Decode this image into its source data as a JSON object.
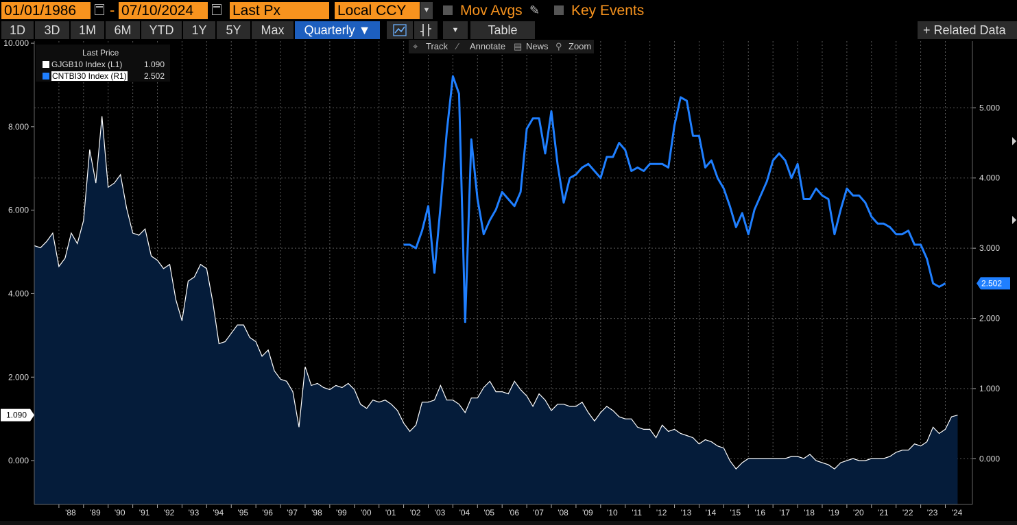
{
  "toolbar": {
    "start_date": "01/01/1986",
    "end_date": "07/10/2024",
    "date_separator": "-",
    "field": "Last Px",
    "currency": "Local CCY",
    "mov_avgs": "Mov Avgs",
    "key_events": "Key Events",
    "ranges": [
      "1D",
      "3D",
      "1M",
      "6M",
      "YTD",
      "1Y",
      "5Y",
      "Max"
    ],
    "frequency": "Quarterly ▼",
    "table": "Table",
    "related": "+ Related Data",
    "dropdown_arrow": "▼",
    "sub_tools": [
      "Track",
      "Annotate",
      "News",
      "Zoom"
    ],
    "sub_tool_icons": [
      "crosshair-icon",
      "pencil-icon",
      "news-icon",
      "magnifier-icon"
    ]
  },
  "colors": {
    "accent": "#f7931e",
    "active": "#1d5fbf",
    "series_left": "#ffffff",
    "series_right": "#1f7fff",
    "area_fill": "#051c3a",
    "grid": "#5a5a5a"
  },
  "legend": {
    "title": "Last Price",
    "entries": [
      {
        "label": "GJGB10 Index  (L1)",
        "value": "1.090"
      },
      {
        "label": "CNTBI30 Index  (R1)",
        "value": "2.502"
      }
    ]
  },
  "chart_data": {
    "type": "line",
    "left_axis": {
      "ticks": [
        "0.000",
        "2.000",
        "4.000",
        "6.000",
        "8.000",
        "10.000"
      ],
      "tick_values": [
        0,
        2,
        4,
        6,
        8,
        10
      ],
      "range": [
        -1.05,
        10.05
      ],
      "last_marker": "1.090"
    },
    "right_axis": {
      "ticks": [
        "0.000",
        "1.000",
        "2.000",
        "3.000",
        "4.000",
        "5.000"
      ],
      "tick_values": [
        0,
        1,
        2,
        3,
        4,
        5
      ],
      "range": [
        -0.65,
        5.95
      ],
      "last_marker": "2.502"
    },
    "x_ticks": [
      "'88",
      "'89",
      "'90",
      "'91",
      "'92",
      "'93",
      "'94",
      "'95",
      "'96",
      "'97",
      "'98",
      "'99",
      "'00",
      "'01",
      "'02",
      "'03",
      "'04",
      "'05",
      "'06",
      "'07",
      "'08",
      "'09",
      "'10",
      "'11",
      "'12",
      "'13",
      "'14",
      "'15",
      "'16",
      "'17",
      "'18",
      "'19",
      "'20",
      "'21",
      "'22",
      "'23",
      "'24"
    ],
    "x_tick_years": [
      1988,
      1989,
      1990,
      1991,
      1992,
      1993,
      1994,
      1995,
      1996,
      1997,
      1998,
      1999,
      2000,
      2001,
      2002,
      2003,
      2004,
      2005,
      2006,
      2007,
      2008,
      2009,
      2010,
      2011,
      2012,
      2013,
      2014,
      2015,
      2016,
      2017,
      2018,
      2019,
      2020,
      2021,
      2022,
      2023,
      2024
    ],
    "x_range": [
      1987.0,
      2025.1
    ],
    "series": [
      {
        "name": "GJGB10 Index (L1)",
        "axis": "left",
        "style": "area",
        "points": [
          [
            1987.0,
            5.15
          ],
          [
            1987.25,
            5.1
          ],
          [
            1987.5,
            5.25
          ],
          [
            1987.75,
            5.45
          ],
          [
            1988.0,
            4.65
          ],
          [
            1988.25,
            4.85
          ],
          [
            1988.5,
            5.45
          ],
          [
            1988.75,
            5.2
          ],
          [
            1989.0,
            5.75
          ],
          [
            1989.25,
            7.45
          ],
          [
            1989.5,
            6.65
          ],
          [
            1989.75,
            8.25
          ],
          [
            1990.0,
            6.55
          ],
          [
            1990.25,
            6.65
          ],
          [
            1990.5,
            6.85
          ],
          [
            1990.75,
            6.05
          ],
          [
            1991.0,
            5.45
          ],
          [
            1991.25,
            5.4
          ],
          [
            1991.5,
            5.55
          ],
          [
            1991.75,
            4.9
          ],
          [
            1992.0,
            4.8
          ],
          [
            1992.25,
            4.6
          ],
          [
            1992.5,
            4.7
          ],
          [
            1992.75,
            3.85
          ],
          [
            1993.0,
            3.35
          ],
          [
            1993.25,
            4.3
          ],
          [
            1993.5,
            4.4
          ],
          [
            1993.75,
            4.7
          ],
          [
            1994.0,
            4.6
          ],
          [
            1994.25,
            3.8
          ],
          [
            1994.5,
            2.8
          ],
          [
            1994.75,
            2.85
          ],
          [
            1995.0,
            3.05
          ],
          [
            1995.25,
            3.25
          ],
          [
            1995.5,
            3.25
          ],
          [
            1995.75,
            2.95
          ],
          [
            1996.0,
            2.85
          ],
          [
            1996.25,
            2.5
          ],
          [
            1996.5,
            2.65
          ],
          [
            1996.75,
            2.15
          ],
          [
            1997.0,
            1.95
          ],
          [
            1997.25,
            1.9
          ],
          [
            1997.5,
            1.65
          ],
          [
            1997.75,
            0.8
          ],
          [
            1998.0,
            2.25
          ],
          [
            1998.25,
            1.8
          ],
          [
            1998.5,
            1.85
          ],
          [
            1998.75,
            1.75
          ],
          [
            1999.0,
            1.7
          ],
          [
            1999.25,
            1.8
          ],
          [
            1999.5,
            1.75
          ],
          [
            1999.75,
            1.85
          ],
          [
            2000.0,
            1.7
          ],
          [
            2000.25,
            1.35
          ],
          [
            2000.5,
            1.25
          ],
          [
            2000.75,
            1.45
          ],
          [
            2001.0,
            1.4
          ],
          [
            2001.25,
            1.45
          ],
          [
            2001.5,
            1.35
          ],
          [
            2001.75,
            1.2
          ],
          [
            2002.0,
            0.9
          ],
          [
            2002.25,
            0.7
          ],
          [
            2002.5,
            0.85
          ],
          [
            2002.75,
            1.4
          ],
          [
            2003.0,
            1.4
          ],
          [
            2003.25,
            1.45
          ],
          [
            2003.5,
            1.8
          ],
          [
            2003.75,
            1.45
          ],
          [
            2004.0,
            1.45
          ],
          [
            2004.25,
            1.35
          ],
          [
            2004.5,
            1.15
          ],
          [
            2004.75,
            1.5
          ],
          [
            2005.0,
            1.5
          ],
          [
            2005.25,
            1.75
          ],
          [
            2005.5,
            1.9
          ],
          [
            2005.75,
            1.65
          ],
          [
            2006.0,
            1.65
          ],
          [
            2006.25,
            1.6
          ],
          [
            2006.5,
            1.9
          ],
          [
            2006.75,
            1.7
          ],
          [
            2007.0,
            1.55
          ],
          [
            2007.25,
            1.3
          ],
          [
            2007.5,
            1.6
          ],
          [
            2007.75,
            1.45
          ],
          [
            2008.0,
            1.2
          ],
          [
            2008.25,
            1.35
          ],
          [
            2008.5,
            1.35
          ],
          [
            2008.75,
            1.3
          ],
          [
            2009.0,
            1.3
          ],
          [
            2009.25,
            1.4
          ],
          [
            2009.5,
            1.15
          ],
          [
            2009.75,
            0.95
          ],
          [
            2010.0,
            1.15
          ],
          [
            2010.25,
            1.3
          ],
          [
            2010.5,
            1.2
          ],
          [
            2010.75,
            1.05
          ],
          [
            2011.0,
            1.0
          ],
          [
            2011.25,
            1.0
          ],
          [
            2011.5,
            0.8
          ],
          [
            2011.75,
            0.75
          ],
          [
            2012.0,
            0.75
          ],
          [
            2012.25,
            0.55
          ],
          [
            2012.5,
            0.85
          ],
          [
            2012.75,
            0.7
          ],
          [
            2013.0,
            0.75
          ],
          [
            2013.25,
            0.65
          ],
          [
            2013.5,
            0.6
          ],
          [
            2013.75,
            0.55
          ],
          [
            2014.0,
            0.4
          ],
          [
            2014.25,
            0.5
          ],
          [
            2014.5,
            0.45
          ],
          [
            2014.75,
            0.35
          ],
          [
            2015.0,
            0.3
          ],
          [
            2015.25,
            0.0
          ],
          [
            2015.5,
            -0.2
          ],
          [
            2015.75,
            -0.05
          ],
          [
            2016.0,
            0.05
          ],
          [
            2016.25,
            0.05
          ],
          [
            2016.5,
            0.05
          ],
          [
            2016.75,
            0.05
          ],
          [
            2017.0,
            0.05
          ],
          [
            2017.25,
            0.05
          ],
          [
            2017.5,
            0.05
          ],
          [
            2017.75,
            0.1
          ],
          [
            2018.0,
            0.1
          ],
          [
            2018.25,
            0.05
          ],
          [
            2018.5,
            0.15
          ],
          [
            2018.75,
            0.0
          ],
          [
            2019.0,
            -0.05
          ],
          [
            2019.25,
            -0.1
          ],
          [
            2019.5,
            -0.2
          ],
          [
            2019.75,
            -0.05
          ],
          [
            2020.0,
            0.0
          ],
          [
            2020.25,
            0.05
          ],
          [
            2020.5,
            0.0
          ],
          [
            2020.75,
            0.0
          ],
          [
            2021.0,
            0.05
          ],
          [
            2021.25,
            0.05
          ],
          [
            2021.5,
            0.05
          ],
          [
            2021.75,
            0.1
          ],
          [
            2022.0,
            0.2
          ],
          [
            2022.25,
            0.25
          ],
          [
            2022.5,
            0.25
          ],
          [
            2022.75,
            0.4
          ],
          [
            2023.0,
            0.35
          ],
          [
            2023.25,
            0.45
          ],
          [
            2023.5,
            0.8
          ],
          [
            2023.75,
            0.65
          ],
          [
            2024.0,
            0.75
          ],
          [
            2024.25,
            1.05
          ],
          [
            2024.5,
            1.09
          ]
        ]
      },
      {
        "name": "CNTBI30 Index (R1)",
        "axis": "right",
        "style": "line",
        "points": [
          [
            2002.0,
            3.05
          ],
          [
            2002.25,
            3.05
          ],
          [
            2002.5,
            3.0
          ],
          [
            2002.75,
            3.25
          ],
          [
            2003.0,
            3.6
          ],
          [
            2003.25,
            2.65
          ],
          [
            2003.5,
            3.6
          ],
          [
            2003.75,
            4.65
          ],
          [
            2004.0,
            5.45
          ],
          [
            2004.25,
            5.2
          ],
          [
            2004.5,
            1.95
          ],
          [
            2004.75,
            4.55
          ],
          [
            2005.0,
            3.7
          ],
          [
            2005.25,
            3.2
          ],
          [
            2005.5,
            3.4
          ],
          [
            2005.75,
            3.55
          ],
          [
            2006.0,
            3.8
          ],
          [
            2006.25,
            3.7
          ],
          [
            2006.5,
            3.6
          ],
          [
            2006.75,
            3.8
          ],
          [
            2007.0,
            4.7
          ],
          [
            2007.25,
            4.85
          ],
          [
            2007.5,
            4.85
          ],
          [
            2007.75,
            4.35
          ],
          [
            2008.0,
            4.95
          ],
          [
            2008.25,
            4.2
          ],
          [
            2008.5,
            3.65
          ],
          [
            2008.75,
            4.0
          ],
          [
            2009.0,
            4.05
          ],
          [
            2009.25,
            4.15
          ],
          [
            2009.5,
            4.2
          ],
          [
            2009.75,
            4.1
          ],
          [
            2010.0,
            4.0
          ],
          [
            2010.25,
            4.3
          ],
          [
            2010.5,
            4.3
          ],
          [
            2010.75,
            4.5
          ],
          [
            2011.0,
            4.4
          ],
          [
            2011.25,
            4.1
          ],
          [
            2011.5,
            4.15
          ],
          [
            2011.75,
            4.1
          ],
          [
            2012.0,
            4.2
          ],
          [
            2012.25,
            4.2
          ],
          [
            2012.5,
            4.2
          ],
          [
            2012.75,
            4.15
          ],
          [
            2013.0,
            4.75
          ],
          [
            2013.25,
            5.15
          ],
          [
            2013.5,
            5.1
          ],
          [
            2013.75,
            4.6
          ],
          [
            2014.0,
            4.6
          ],
          [
            2014.25,
            4.15
          ],
          [
            2014.5,
            4.25
          ],
          [
            2014.75,
            4.0
          ],
          [
            2015.0,
            3.85
          ],
          [
            2015.25,
            3.6
          ],
          [
            2015.5,
            3.3
          ],
          [
            2015.75,
            3.5
          ],
          [
            2016.0,
            3.2
          ],
          [
            2016.25,
            3.55
          ],
          [
            2016.5,
            3.75
          ],
          [
            2016.75,
            3.95
          ],
          [
            2017.0,
            4.25
          ],
          [
            2017.25,
            4.35
          ],
          [
            2017.5,
            4.25
          ],
          [
            2017.75,
            4.0
          ],
          [
            2018.0,
            4.2
          ],
          [
            2018.25,
            3.7
          ],
          [
            2018.5,
            3.7
          ],
          [
            2018.75,
            3.85
          ],
          [
            2019.0,
            3.75
          ],
          [
            2019.25,
            3.7
          ],
          [
            2019.5,
            3.2
          ],
          [
            2019.75,
            3.55
          ],
          [
            2020.0,
            3.85
          ],
          [
            2020.25,
            3.75
          ],
          [
            2020.5,
            3.75
          ],
          [
            2020.75,
            3.65
          ],
          [
            2021.0,
            3.45
          ],
          [
            2021.25,
            3.35
          ],
          [
            2021.5,
            3.35
          ],
          [
            2021.75,
            3.3
          ],
          [
            2022.0,
            3.2
          ],
          [
            2022.25,
            3.2
          ],
          [
            2022.5,
            3.25
          ],
          [
            2022.75,
            3.05
          ],
          [
            2023.0,
            3.05
          ],
          [
            2023.25,
            2.85
          ],
          [
            2023.5,
            2.5
          ],
          [
            2023.75,
            2.45
          ],
          [
            2024.0,
            2.5
          ]
        ]
      }
    ]
  }
}
